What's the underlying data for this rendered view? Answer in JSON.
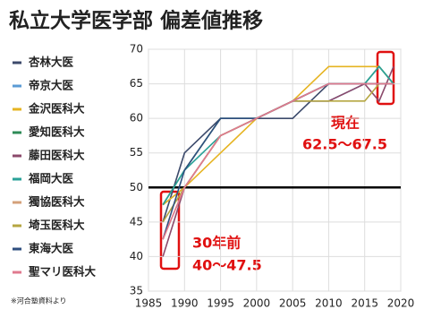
{
  "chart_data": {
    "type": "line",
    "title": "私立大学医学部 偏差値推移",
    "x": [
      1987,
      1990,
      1995,
      2000,
      2005,
      2010,
      2015,
      2017,
      2019
    ],
    "series": [
      {
        "name": "杏林大医",
        "color": "#3c4a6b",
        "values": [
          45,
          55,
          60,
          60,
          60,
          65,
          65,
          65,
          65
        ]
      },
      {
        "name": "帝京大医",
        "color": "#5b9bd5",
        "values": [
          47.5,
          50,
          57.5,
          60,
          62.5,
          62.5,
          65,
          65,
          65
        ]
      },
      {
        "name": "金沢医科大",
        "color": "#e6b422",
        "values": [
          47.5,
          50,
          55,
          60,
          62.5,
          67.5,
          67.5,
          67.5,
          65
        ]
      },
      {
        "name": "愛知医科大",
        "color": "#2e8b57",
        "values": [
          47.5,
          52.5,
          60,
          60,
          62.5,
          65,
          65,
          67.5,
          65
        ]
      },
      {
        "name": "藤田医科大",
        "color": "#8b4a6b",
        "values": [
          40,
          50,
          57.5,
          60,
          62.5,
          62.5,
          65,
          62.5,
          67.5
        ]
      },
      {
        "name": "福岡大医",
        "color": "#2aa198",
        "values": [
          47.5,
          52.5,
          57.5,
          60,
          62.5,
          65,
          65,
          67.5,
          65
        ]
      },
      {
        "name": "獨協医科大",
        "color": "#d4a07a",
        "values": [
          42.5,
          50,
          57.5,
          60,
          62.5,
          65,
          65,
          65,
          65
        ]
      },
      {
        "name": "埼玉医科大",
        "color": "#b5a642",
        "values": [
          45,
          50,
          57.5,
          60,
          62.5,
          62.5,
          62.5,
          65,
          65
        ]
      },
      {
        "name": "東海大医",
        "color": "#2f4f7f",
        "values": [
          42.5,
          52.5,
          60,
          60,
          62.5,
          65,
          65,
          65,
          65
        ]
      },
      {
        "name": "聖マリ医科大",
        "color": "#e07a8f",
        "values": [
          42.5,
          50,
          57.5,
          60,
          62.5,
          65,
          65,
          65,
          65
        ]
      }
    ],
    "xlim": [
      1985,
      2020
    ],
    "xticks": [
      1985,
      1990,
      1995,
      2000,
      2005,
      2010,
      2015,
      2020
    ],
    "ylim": [
      35,
      70
    ],
    "yticks": [
      35,
      40,
      45,
      50,
      55,
      60,
      65,
      70
    ],
    "reference_line": 50,
    "annotations": [
      "30年前",
      "40〜47.5",
      "現在",
      "62.5〜67.5"
    ],
    "footnote": "※河合塾資料より"
  }
}
